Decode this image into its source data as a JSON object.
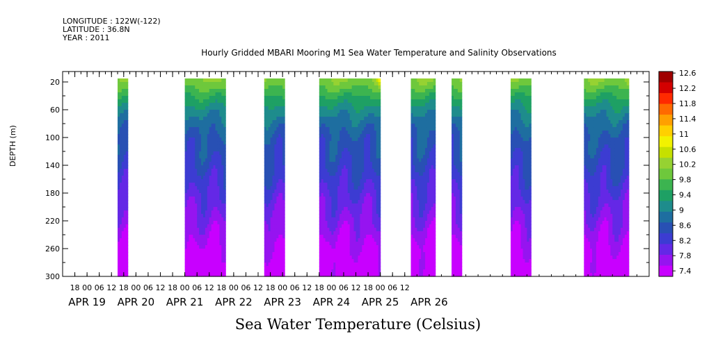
{
  "header": {
    "longitude": "LONGITUDE : 122W(-122)",
    "latitude": "LATITUDE : 36.8N",
    "year": "YEAR : 2011"
  },
  "chart_data": {
    "type": "heatmap",
    "title": "Hourly Gridded MBARI Mooring M1 Sea Water Temperature and Salinity Observations",
    "xlabel": "Sea Water Temperature (Celsius)",
    "ylabel": "DEPTH (m)",
    "x_hours_labels": [
      "18",
      "00",
      "06",
      "12",
      "18",
      "00",
      "06",
      "12",
      "18",
      "00",
      "06",
      "12",
      "18",
      "00",
      "06",
      "12",
      "18",
      "00",
      "06",
      "12",
      "18",
      "00",
      "06",
      "12",
      "18",
      "00",
      "06",
      "12"
    ],
    "x_day_labels": [
      "APR 19",
      "APR 20",
      "APR 21",
      "APR 22",
      "APR 23",
      "APR 24",
      "APR 25",
      "APR 26"
    ],
    "x_range_hours_from_apr19_00": [
      12,
      300
    ],
    "y_ticks": [
      20,
      60,
      100,
      140,
      180,
      220,
      260,
      300
    ],
    "y_range": [
      300,
      5
    ],
    "colorbar_levels": [
      "12.6",
      "12.2",
      "11.8",
      "11.4",
      "11",
      "10.6",
      "10.2",
      "9.8",
      "9.4",
      "9",
      "8.6",
      "8.2",
      "7.8",
      "7.4"
    ],
    "colorbar_colors": [
      "#a00000",
      "#d40000",
      "#ff2a00",
      "#ff6a00",
      "#ffa000",
      "#ffd000",
      "#f2f200",
      "#c6e000",
      "#96d232",
      "#6ec83c",
      "#3cb450",
      "#1ea064",
      "#1e8c8c",
      "#1e6ea0",
      "#2850b4",
      "#3c3cd2",
      "#6428e6",
      "#9614f0",
      "#c800ff"
    ],
    "observation_windows_hours": [
      [
        39,
        44
      ],
      [
        72,
        92
      ],
      [
        111,
        121
      ],
      [
        138,
        168
      ],
      [
        183,
        195
      ],
      [
        203,
        208
      ],
      [
        232,
        242
      ],
      [
        268,
        290
      ]
    ],
    "temperature_profile_depth": [
      20,
      40,
      60,
      80,
      100,
      140,
      180,
      220,
      260,
      300
    ],
    "temperature_profile_celsius": [
      10.1,
      9.6,
      9.2,
      8.9,
      8.7,
      8.5,
      8.2,
      7.9,
      7.6,
      7.4
    ],
    "surface_maxima": [
      {
        "window": 3,
        "depth": 20,
        "value": 11.0
      },
      {
        "window": 7,
        "depth": 20,
        "value": 10.6
      }
    ]
  }
}
